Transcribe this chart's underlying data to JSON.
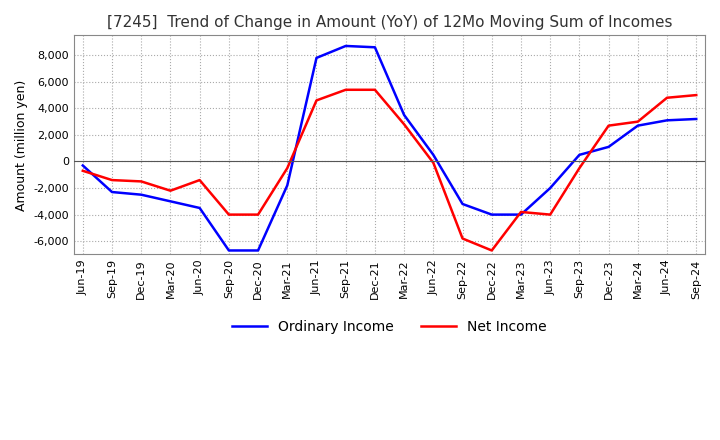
{
  "title": "[7245]  Trend of Change in Amount (YoY) of 12Mo Moving Sum of Incomes",
  "ylabel": "Amount (million yen)",
  "ylim": [
    -7000,
    9500
  ],
  "yticks": [
    -6000,
    -4000,
    -2000,
    0,
    2000,
    4000,
    6000,
    8000
  ],
  "x_labels": [
    "Jun-19",
    "Sep-19",
    "Dec-19",
    "Mar-20",
    "Jun-20",
    "Sep-20",
    "Dec-20",
    "Mar-21",
    "Jun-21",
    "Sep-21",
    "Dec-21",
    "Mar-22",
    "Jun-22",
    "Sep-22",
    "Dec-22",
    "Mar-23",
    "Jun-23",
    "Sep-23",
    "Dec-23",
    "Mar-24",
    "Jun-24",
    "Sep-24"
  ],
  "ordinary_income": [
    -300,
    -2300,
    -2500,
    -3000,
    -3500,
    -6700,
    -6700,
    -1800,
    7800,
    8700,
    8600,
    3500,
    500,
    -3200,
    -4000,
    -4000,
    -2000,
    500,
    1100,
    2700,
    3100,
    3200
  ],
  "net_income": [
    -700,
    -1400,
    -1500,
    -2200,
    -1400,
    -4000,
    -4000,
    -500,
    4600,
    5400,
    5400,
    2800,
    -100,
    -5800,
    -6700,
    -3800,
    -4000,
    -500,
    2700,
    3000,
    4800,
    5000
  ],
  "ordinary_income_color": "#0000ff",
  "net_income_color": "#ff0000",
  "background_color": "#ffffff",
  "grid_color": "#aaaaaa",
  "title_fontsize": 11,
  "axis_fontsize": 9,
  "legend_fontsize": 10
}
